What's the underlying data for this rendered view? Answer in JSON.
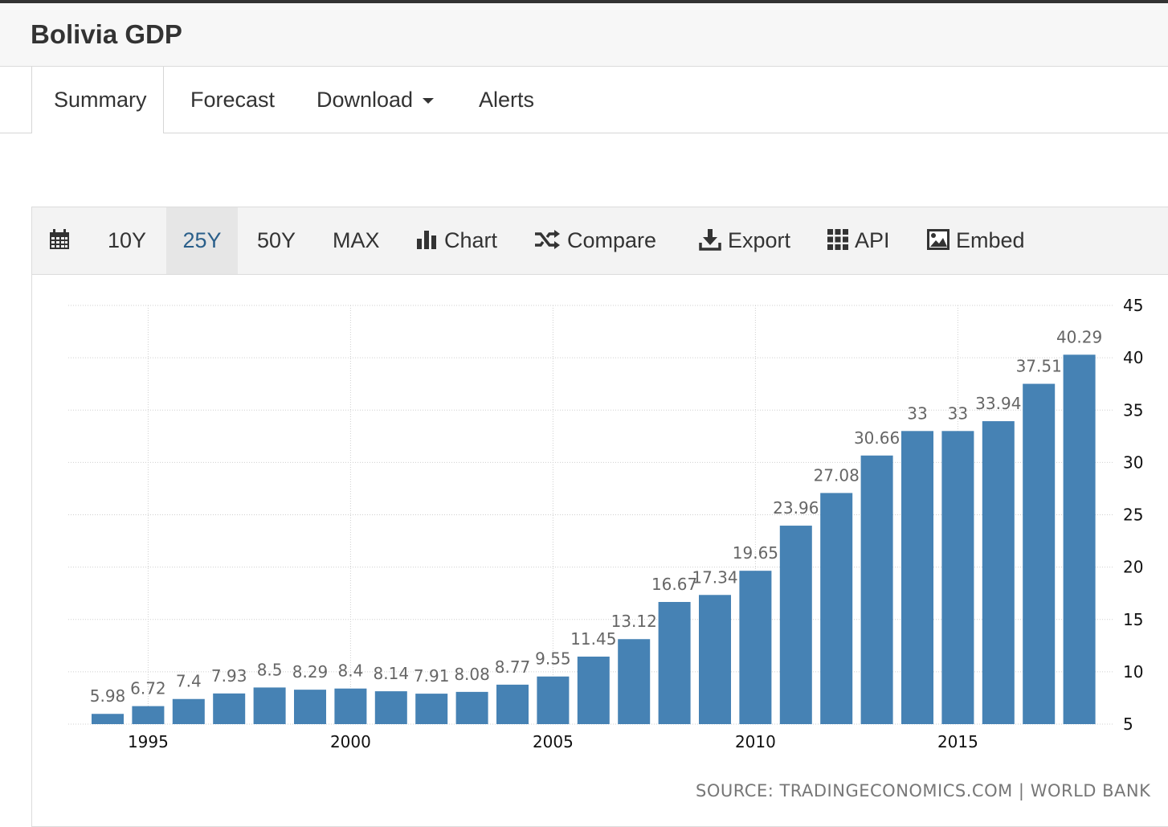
{
  "page": {
    "title": "Bolivia GDP"
  },
  "tabs": [
    {
      "label": "Summary",
      "active": true
    },
    {
      "label": "Forecast",
      "active": false
    },
    {
      "label": "Download",
      "active": false
    },
    {
      "label": "Alerts",
      "active": false
    }
  ],
  "toolbar": {
    "calendar_icon": "calendar-icon",
    "ranges": [
      {
        "label": "10Y",
        "active": false
      },
      {
        "label": "25Y",
        "active": true
      },
      {
        "label": "50Y",
        "active": false
      },
      {
        "label": "MAX",
        "active": false
      }
    ],
    "chart_label": "Chart",
    "compare_label": "Compare",
    "export_label": "Export",
    "api_label": "API",
    "embed_label": "Embed"
  },
  "source": {
    "left": "SOURCE: TRADINGECONOMICS.COM",
    "separator": "|",
    "right": "WORLD BANK"
  },
  "colors": {
    "bar": "#4682b4",
    "active_text": "#2a5f8a"
  },
  "chart_data": {
    "type": "bar",
    "title": "",
    "xlabel": "",
    "ylabel": "",
    "categories": [
      1994,
      1995,
      1996,
      1997,
      1998,
      1999,
      2000,
      2001,
      2002,
      2003,
      2004,
      2005,
      2006,
      2007,
      2008,
      2009,
      2010,
      2011,
      2012,
      2013,
      2014,
      2015,
      2016,
      2017,
      2018
    ],
    "values": [
      5.98,
      6.72,
      7.4,
      7.93,
      8.5,
      8.29,
      8.4,
      8.14,
      7.91,
      8.08,
      8.77,
      9.55,
      11.45,
      13.12,
      16.67,
      17.34,
      19.65,
      23.96,
      27.08,
      30.66,
      33,
      33,
      33.94,
      37.51,
      40.29
    ],
    "labels": [
      "5.98",
      "6.72",
      "7.4",
      "7.93",
      "8.5",
      "8.29",
      "8.4",
      "8.14",
      "7.91",
      "8.08",
      "8.77",
      "9.55",
      "11.45",
      "13.12",
      "16.67",
      "17.34",
      "19.65",
      "23.96",
      "27.08",
      "30.66",
      "33",
      "33",
      "33.94",
      "37.51",
      "40.29"
    ],
    "ylim": [
      5,
      45
    ],
    "yticks": [
      5,
      10,
      15,
      20,
      25,
      30,
      35,
      40,
      45
    ],
    "xticks": [
      1995,
      2000,
      2005,
      2010,
      2015
    ],
    "y_axis_position": "right",
    "grid": true
  }
}
